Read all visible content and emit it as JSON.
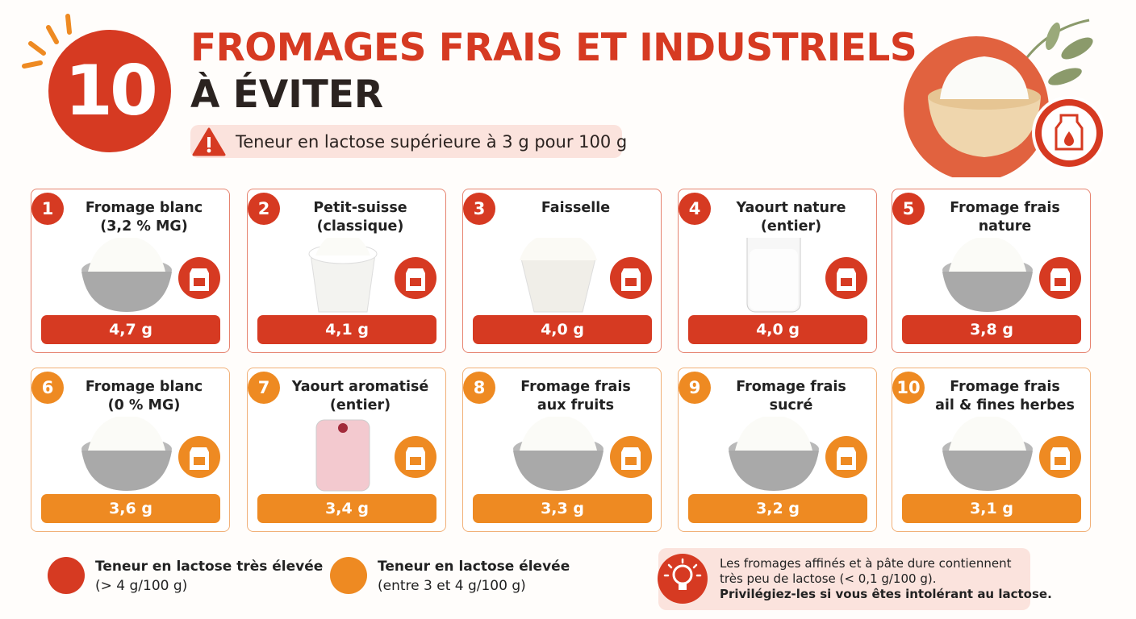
{
  "header": {
    "number": "10",
    "title_line1": "FROMAGES FRAIS ET INDUSTRIELS",
    "title_line2": "À ÉVITER",
    "subtitle": "Teneur en lactose supérieure à 3 g pour 100 g"
  },
  "cards": [
    {
      "rank": "1",
      "name": [
        "Fromage blanc",
        "(3,2 % MG)"
      ],
      "value": "4,7 g"
    },
    {
      "rank": "2",
      "name": [
        "Petit-suisse",
        "(classique)"
      ],
      "value": "4,1 g"
    },
    {
      "rank": "3",
      "name": [
        "Faisselle"
      ],
      "value": "4,0 g"
    },
    {
      "rank": "4",
      "name": [
        "Yaourt nature",
        "(entier)"
      ],
      "value": "4,0 g"
    },
    {
      "rank": "5",
      "name": [
        "Fromage frais",
        "nature"
      ],
      "value": "3,8 g"
    },
    {
      "rank": "6",
      "name": [
        "Fromage blanc",
        "(0 % MG)"
      ],
      "value": "3,6 g"
    },
    {
      "rank": "7",
      "name": [
        "Yaourt aromatisé",
        "(entier)"
      ],
      "value": "3,4 g"
    },
    {
      "rank": "8",
      "name": [
        "Fromage frais",
        "aux fruits"
      ],
      "value": "3,3 g"
    },
    {
      "rank": "9",
      "name": [
        "Fromage frais",
        "sucré"
      ],
      "value": "3,2 g"
    },
    {
      "rank": "10",
      "name": [
        "Fromage frais",
        "ail & fines herbes"
      ],
      "value": "3,1 g"
    }
  ],
  "legend": [
    {
      "lines": [
        "Teneur en lactose très élevée",
        "(> 4 g/100 g)"
      ]
    },
    {
      "lines": [
        "Teneur en lactose élevée",
        "(entre 3 et 4 g/100 g)"
      ]
    }
  ],
  "tip": {
    "lines": [
      "Les fromages affinés et à pâte dure contiennent",
      "très peu de lactose (< 0,1 g/100 g)."
    ],
    "bold": "Privilégiez-les si vous êtes intolérant au lactose."
  }
}
